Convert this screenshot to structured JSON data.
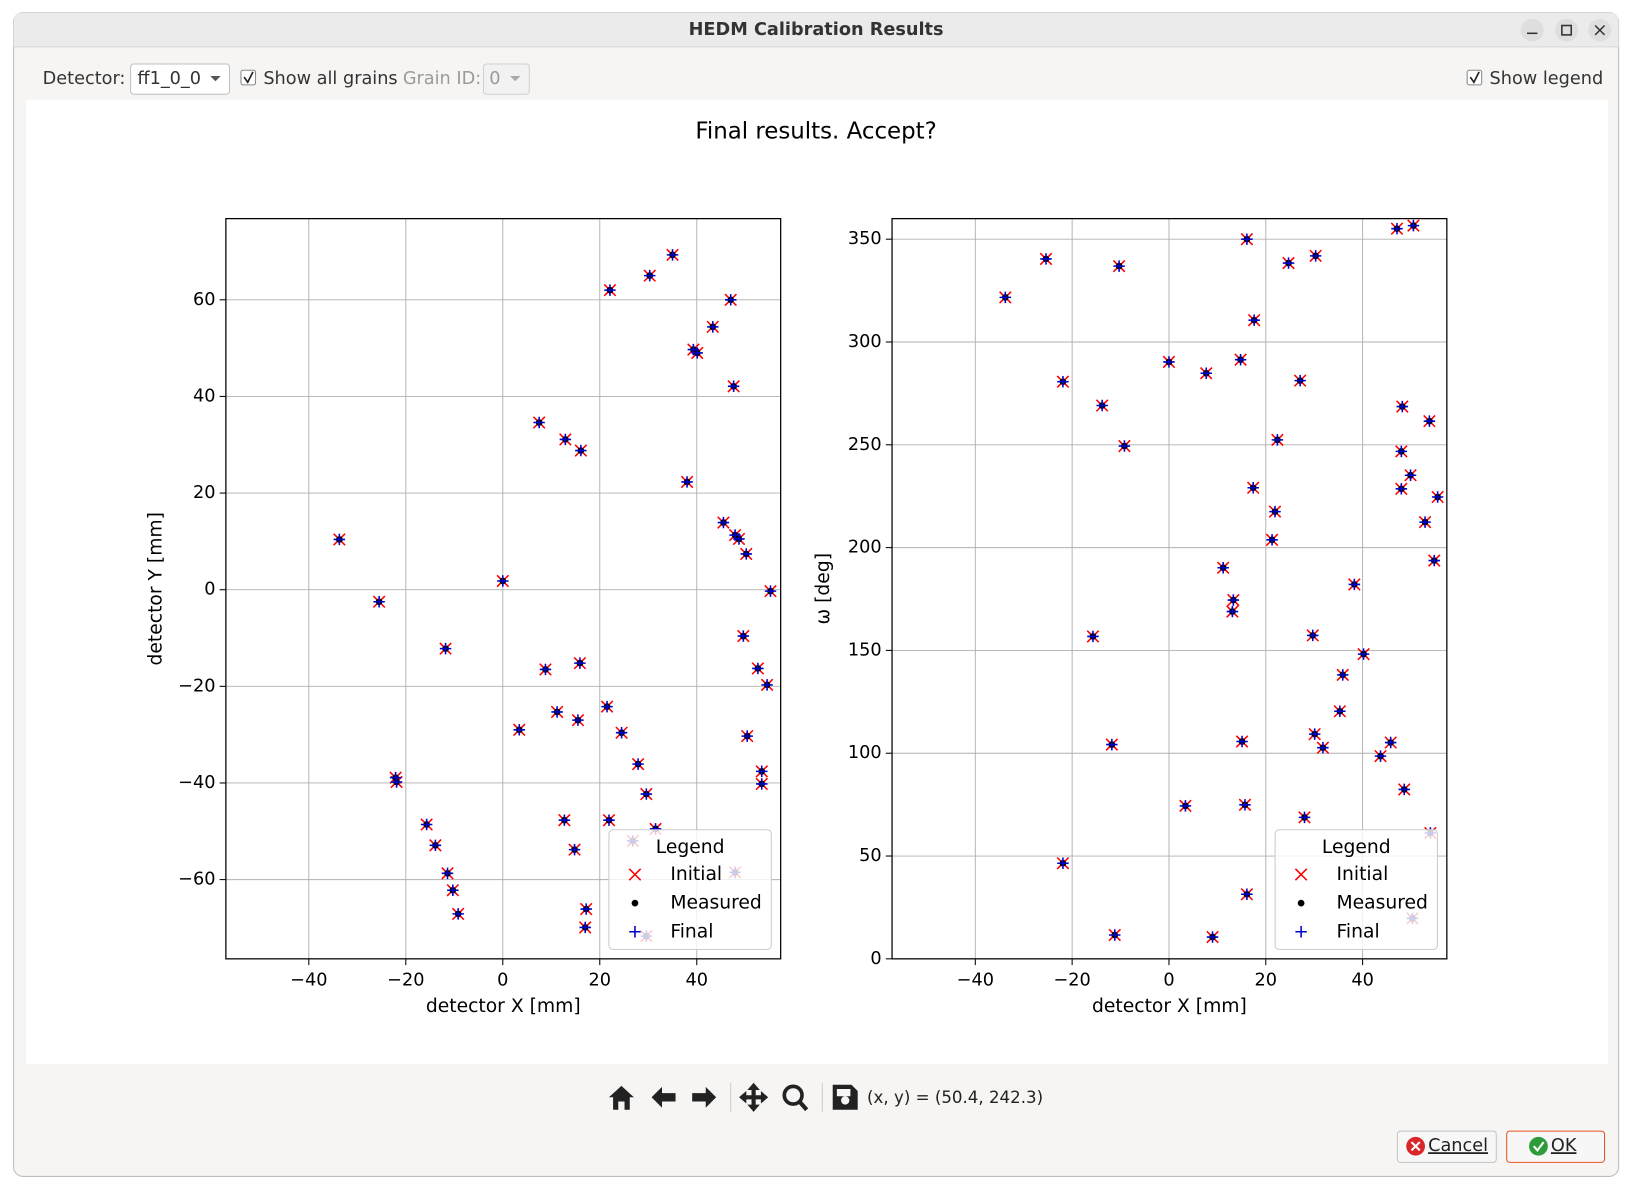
{
  "window": {
    "title": "HEDM Calibration Results"
  },
  "controls": {
    "detector_label": "Detector:",
    "detector_value": "ff1_0_0",
    "show_all_grains": "Show all grains",
    "show_all_grains_checked": true,
    "grain_id_label": "Grain ID:",
    "grain_id_value": "0",
    "show_legend": "Show legend",
    "show_legend_checked": true
  },
  "figure_title": "Final results. Accept?",
  "toolbar": {
    "coordinates": "(x, y) = (50.4, 242.3)"
  },
  "buttons": {
    "cancel": "Cancel",
    "ok": "OK"
  },
  "chart_data": [
    {
      "type": "scatter",
      "xlabel": "detector X [mm]",
      "ylabel": "detector Y [mm]",
      "xlim": [
        -57.1,
        57.3
      ],
      "ylim": [
        -76.4,
        76.8
      ],
      "xticks": [
        {
          "value": -40,
          "label": "−40"
        },
        {
          "value": -20,
          "label": "−20"
        },
        0,
        20,
        40
      ],
      "yticks": [
        {
          "value": -60,
          "label": "−60"
        },
        {
          "value": -40,
          "label": "−40"
        },
        {
          "value": -20,
          "label": "−20"
        },
        0,
        20,
        40,
        60
      ],
      "grid": true,
      "legend": "lower right",
      "legend_title": "Legend",
      "series": [
        {
          "name": "Initial",
          "color": "#ff0000",
          "marker": "x",
          "x": [
            -33.7,
            -25.5,
            -11.8,
            -22.1,
            -21.9,
            -15.7,
            -13.9,
            -11.4,
            -10.3,
            -9.2,
            0,
            3.4,
            7.5,
            8.8,
            11.2,
            12.9,
            12.7,
            14.8,
            15.5,
            15.9,
            16.1,
            17.2,
            17.0,
            22.1,
            21.5,
            21.9,
            24.5,
            27.9,
            29.6,
            30.3,
            31.5,
            26.8,
            29.6,
            47.9,
            35.0,
            38.0,
            39.3,
            40.1,
            43.3,
            45.5,
            47.0,
            47.6,
            47.9,
            48.7,
            49.6,
            50.2,
            50.4,
            52.6,
            53.4,
            53.4,
            54.5,
            55.2
          ],
          "values": [
            10.4,
            -2.5,
            -12.2,
            -38.9,
            -39.8,
            -48.6,
            -52.9,
            -58.7,
            -62.2,
            -67.1,
            1.8,
            -29.0,
            34.6,
            -16.5,
            -25.3,
            31.1,
            -47.7,
            -53.8,
            -27.0,
            -15.2,
            28.8,
            -66.1,
            -69.9,
            62.0,
            -24.2,
            -47.7,
            -29.6,
            -36.1,
            -42.3,
            65.0,
            -49.5,
            -52.0,
            -71.7,
            -58.5,
            69.3,
            22.3,
            49.7,
            49.0,
            54.4,
            13.9,
            60.0,
            42.1,
            11.3,
            10.5,
            -9.6,
            7.4,
            -30.3,
            -16.3,
            -37.6,
            -40.2,
            -19.7,
            -0.3
          ]
        },
        {
          "name": "Measured",
          "color": "#000000",
          "marker": "o",
          "x": [
            -33.7,
            -25.5,
            -11.8,
            -22.1,
            -21.9,
            -15.7,
            -13.9,
            -11.4,
            -10.3,
            -9.2,
            0,
            3.4,
            7.5,
            8.8,
            11.2,
            12.9,
            12.7,
            14.8,
            15.5,
            15.9,
            16.1,
            17.2,
            17.0,
            22.1,
            21.5,
            21.9,
            24.5,
            27.9,
            29.6,
            30.3,
            31.5,
            26.8,
            29.6,
            47.9,
            35.0,
            38.0,
            39.3,
            40.1,
            43.3,
            45.5,
            47.0,
            47.6,
            47.9,
            48.7,
            49.6,
            50.2,
            50.4,
            52.6,
            53.4,
            53.4,
            54.5,
            55.2
          ],
          "values": [
            10.4,
            -2.5,
            -12.2,
            -38.9,
            -39.8,
            -48.6,
            -52.9,
            -58.7,
            -62.2,
            -67.1,
            1.8,
            -29.0,
            34.6,
            -16.5,
            -25.3,
            31.1,
            -47.7,
            -53.8,
            -27.0,
            -15.2,
            28.8,
            -66.1,
            -69.9,
            62.0,
            -24.2,
            -47.7,
            -29.6,
            -36.1,
            -42.3,
            65.0,
            -49.5,
            -52.0,
            -71.7,
            -58.5,
            69.3,
            22.3,
            49.7,
            49.0,
            54.4,
            13.9,
            60.0,
            42.1,
            11.3,
            10.5,
            -9.6,
            7.4,
            -30.3,
            -16.3,
            -37.6,
            -40.2,
            -19.7,
            -0.3
          ]
        },
        {
          "name": "Final",
          "color": "#0000cc",
          "marker": "+",
          "x": [
            -33.7,
            -25.5,
            -11.8,
            -22.1,
            -21.9,
            -15.7,
            -13.9,
            -11.4,
            -10.3,
            -9.2,
            0,
            3.4,
            7.5,
            8.8,
            11.2,
            12.9,
            12.7,
            14.8,
            15.5,
            15.9,
            16.1,
            17.2,
            17.0,
            22.1,
            21.5,
            21.9,
            24.5,
            27.9,
            29.6,
            30.3,
            31.5,
            26.8,
            29.6,
            47.9,
            35.0,
            38.0,
            39.3,
            40.1,
            43.3,
            45.5,
            47.0,
            47.6,
            47.9,
            48.7,
            49.6,
            50.2,
            50.4,
            52.6,
            53.4,
            53.4,
            54.5,
            55.2
          ],
          "values": [
            10.4,
            -2.5,
            -12.2,
            -38.9,
            -39.8,
            -48.6,
            -52.9,
            -58.7,
            -62.2,
            -67.1,
            1.8,
            -29.0,
            34.6,
            -16.5,
            -25.3,
            31.1,
            -47.7,
            -53.8,
            -27.0,
            -15.2,
            28.8,
            -66.1,
            -69.9,
            62.0,
            -24.2,
            -47.7,
            -29.6,
            -36.1,
            -42.3,
            65.0,
            -49.5,
            -52.0,
            -71.7,
            -58.5,
            69.3,
            22.3,
            49.7,
            49.0,
            54.4,
            13.9,
            60.0,
            42.1,
            11.3,
            10.5,
            -9.6,
            7.4,
            -30.3,
            -16.3,
            -37.6,
            -40.2,
            -19.7,
            -0.3
          ]
        }
      ]
    },
    {
      "type": "scatter",
      "xlabel": "detector X [mm]",
      "ylabel": "ω [deg]",
      "xlim": [
        -57.2,
        57.4
      ],
      "ylim": [
        0,
        360
      ],
      "xticks": [
        {
          "value": -40,
          "label": "−40"
        },
        {
          "value": -20,
          "label": "−20"
        },
        0,
        20,
        40
      ],
      "yticks": [
        0,
        50,
        100,
        150,
        200,
        250,
        300,
        350
      ],
      "grid": true,
      "legend": "lower right",
      "legend_title": "Legend",
      "series": [
        {
          "name": "Initial",
          "color": "#ff0000",
          "marker": "x",
          "x": [
            -33.8,
            -25.4,
            -21.9,
            -21.9,
            -15.7,
            -13.8,
            -11.8,
            -11.2,
            -10.3,
            -9.2,
            0,
            3.4,
            7.7,
            9.0,
            11.2,
            13.3,
            13.1,
            14.8,
            15.1,
            15.7,
            16.1,
            16.1,
            17.4,
            17.6,
            21.3,
            21.9,
            22.4,
            24.7,
            27.1,
            28.0,
            29.7,
            30.1,
            30.3,
            31.8,
            35.3,
            35.9,
            38.3,
            40.2,
            43.7,
            45.8,
            47.1,
            48.0,
            48.0,
            48.2,
            48.6,
            49.9,
            50.5,
            50.3,
            52.9,
            53.8,
            54.0,
            54.8,
            55.5
          ],
          "values": [
            321.7,
            340.4,
            280.7,
            46.5,
            156.8,
            269.1,
            104.2,
            11.6,
            336.9,
            249.4,
            290.3,
            74.4,
            284.8,
            10.6,
            190.2,
            174.5,
            168.9,
            291.4,
            105.7,
            74.9,
            350.0,
            31.4,
            229.1,
            310.6,
            203.8,
            217.5,
            252.4,
            338.4,
            281.2,
            68.8,
            157.3,
            109.3,
            341.9,
            102.7,
            120.4,
            138.1,
            182.1,
            148.2,
            98.6,
            105.2,
            355.1,
            228.6,
            246.8,
            268.6,
            82.4,
            235.2,
            356.6,
            19.7,
            212.4,
            261.5,
            61.2,
            193.7,
            224.6
          ]
        },
        {
          "name": "Measured",
          "color": "#000000",
          "marker": "o",
          "x": [
            -33.8,
            -25.4,
            -21.9,
            -21.9,
            -15.7,
            -13.8,
            -11.8,
            -11.2,
            -10.3,
            -9.2,
            0,
            3.4,
            7.7,
            9.0,
            11.2,
            13.3,
            13.1,
            14.8,
            15.1,
            15.7,
            16.1,
            16.1,
            17.4,
            17.6,
            21.3,
            21.9,
            22.4,
            24.7,
            27.1,
            28.0,
            29.7,
            30.1,
            30.3,
            31.8,
            35.3,
            35.9,
            38.3,
            40.2,
            43.7,
            45.8,
            47.1,
            48.0,
            48.0,
            48.2,
            48.6,
            49.9,
            50.5,
            50.3,
            52.9,
            53.8,
            54.0,
            54.8,
            55.5
          ],
          "values": [
            321.7,
            340.4,
            280.7,
            46.5,
            156.8,
            269.1,
            104.2,
            11.6,
            336.9,
            249.4,
            290.3,
            74.4,
            284.8,
            10.6,
            190.2,
            174.5,
            168.9,
            291.4,
            105.7,
            74.9,
            350.0,
            31.4,
            229.1,
            310.6,
            203.8,
            217.5,
            252.4,
            338.4,
            281.2,
            68.8,
            157.3,
            109.3,
            341.9,
            102.7,
            120.4,
            138.1,
            182.1,
            148.2,
            98.6,
            105.2,
            355.1,
            228.6,
            246.8,
            268.6,
            82.4,
            235.2,
            356.6,
            19.7,
            212.4,
            261.5,
            61.2,
            193.7,
            224.6
          ]
        },
        {
          "name": "Final",
          "color": "#0000cc",
          "marker": "+",
          "x": [
            -33.8,
            -25.4,
            -21.9,
            -21.9,
            -15.7,
            -13.8,
            -11.8,
            -11.2,
            -10.3,
            -9.2,
            0,
            3.4,
            7.7,
            9.0,
            11.2,
            13.3,
            13.1,
            14.8,
            15.1,
            15.7,
            16.1,
            16.1,
            17.4,
            17.6,
            21.3,
            21.9,
            22.4,
            24.7,
            27.1,
            28.0,
            29.7,
            30.1,
            30.3,
            31.8,
            35.3,
            35.9,
            38.3,
            40.2,
            43.7,
            45.8,
            47.1,
            48.0,
            48.0,
            48.2,
            48.6,
            49.9,
            50.5,
            50.3,
            52.9,
            53.8,
            54.0,
            54.8,
            55.5
          ],
          "values": [
            321.7,
            340.4,
            280.7,
            46.5,
            156.8,
            269.1,
            104.2,
            11.6,
            336.9,
            249.4,
            290.3,
            74.4,
            284.8,
            10.6,
            190.2,
            174.5,
            168.9,
            291.4,
            105.7,
            74.9,
            350.0,
            31.4,
            229.1,
            310.6,
            203.8,
            217.5,
            252.4,
            338.4,
            281.2,
            68.8,
            157.3,
            109.3,
            341.9,
            102.7,
            120.4,
            138.1,
            182.1,
            148.2,
            98.6,
            105.2,
            355.1,
            228.6,
            246.8,
            268.6,
            82.4,
            235.2,
            356.6,
            19.7,
            212.4,
            261.5,
            61.2,
            193.7,
            224.6
          ]
        }
      ]
    }
  ]
}
